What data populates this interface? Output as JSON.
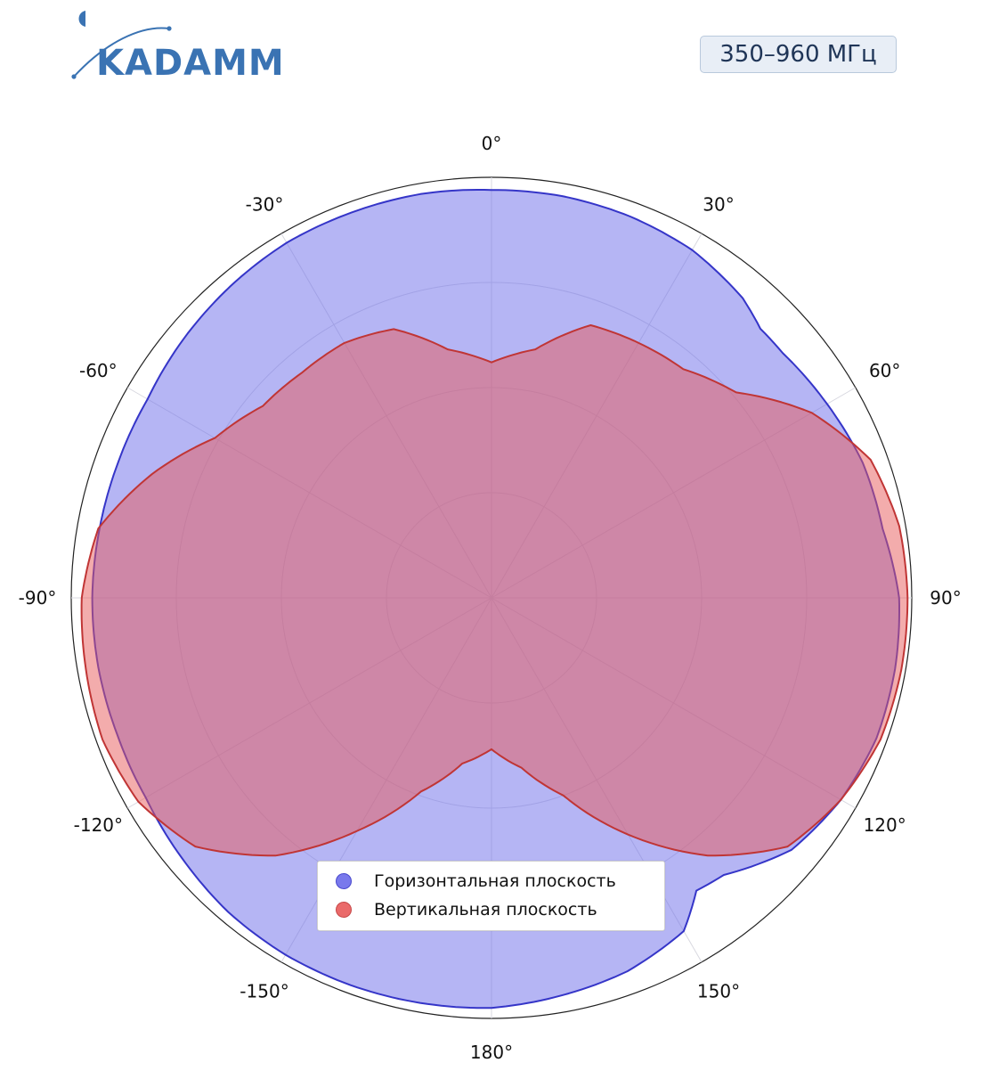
{
  "brand": {
    "logo_text": "KADAMM",
    "color": "#3a73b3"
  },
  "badge": {
    "text": "350–960 МГц"
  },
  "chart_data": {
    "type": "area",
    "projection": "polar",
    "angle_unit": "deg",
    "direction": "clockwise",
    "zero_at": "top",
    "angular_ticks": [
      {
        "angle": 0,
        "label": "0°"
      },
      {
        "angle": 30,
        "label": "30°"
      },
      {
        "angle": 60,
        "label": "60°"
      },
      {
        "angle": 90,
        "label": "90°"
      },
      {
        "angle": 120,
        "label": "120°"
      },
      {
        "angle": 150,
        "label": "150°"
      },
      {
        "angle": 180,
        "label": "180°"
      },
      {
        "angle": -150,
        "label": "-150°"
      },
      {
        "angle": -120,
        "label": "-120°"
      },
      {
        "angle": -90,
        "label": "-90°"
      },
      {
        "angle": -60,
        "label": "-60°"
      },
      {
        "angle": -30,
        "label": "-30°"
      }
    ],
    "radial_range": [
      0,
      1
    ],
    "radial_grid": [
      0.25,
      0.5,
      0.75,
      1.0
    ],
    "radial_tick_labels": false,
    "grid": true,
    "legend_position": "bottom-center",
    "series": [
      {
        "name": "Горизонтальная плоскость",
        "color": "#6b6bea",
        "line_color": "#3535c8",
        "angles": [
          -180,
          -170,
          -160,
          -150,
          -140,
          -130,
          -120,
          -110,
          -100,
          -90,
          -80,
          -70,
          -60,
          -50,
          -40,
          -30,
          -20,
          -10,
          0,
          10,
          20,
          30,
          40,
          45,
          50,
          60,
          70,
          80,
          90,
          100,
          110,
          120,
          130,
          140,
          145,
          150,
          160,
          170
        ],
        "values": [
          0.975,
          0.978,
          0.98,
          0.98,
          0.975,
          0.962,
          0.95,
          0.948,
          0.95,
          0.95,
          0.947,
          0.945,
          0.945,
          0.957,
          0.967,
          0.975,
          0.975,
          0.975,
          0.97,
          0.97,
          0.965,
          0.955,
          0.93,
          0.905,
          0.905,
          0.922,
          0.94,
          0.945,
          0.97,
          0.975,
          0.975,
          0.96,
          0.932,
          0.86,
          0.85,
          0.915,
          0.945,
          0.96
        ]
      },
      {
        "name": "Вертикальная плоскость",
        "color": "#e85a5a",
        "line_color": "#c03535",
        "angles": [
          -180,
          -170,
          -160,
          -150,
          -140,
          -130,
          -120,
          -110,
          -100,
          -90,
          -80,
          -70,
          -60,
          -50,
          -40,
          -30,
          -20,
          -10,
          0,
          10,
          20,
          30,
          40,
          50,
          60,
          70,
          80,
          90,
          100,
          110,
          120,
          130,
          140,
          150,
          160,
          170
        ],
        "values": [
          0.36,
          0.4,
          0.49,
          0.64,
          0.8,
          0.92,
          0.97,
          0.985,
          0.98,
          0.975,
          0.95,
          0.86,
          0.76,
          0.71,
          0.7,
          0.7,
          0.68,
          0.6,
          0.56,
          0.6,
          0.69,
          0.7,
          0.71,
          0.76,
          0.88,
          0.96,
          0.985,
          0.99,
          0.99,
          0.985,
          0.96,
          0.92,
          0.8,
          0.65,
          0.5,
          0.41
        ]
      }
    ]
  }
}
